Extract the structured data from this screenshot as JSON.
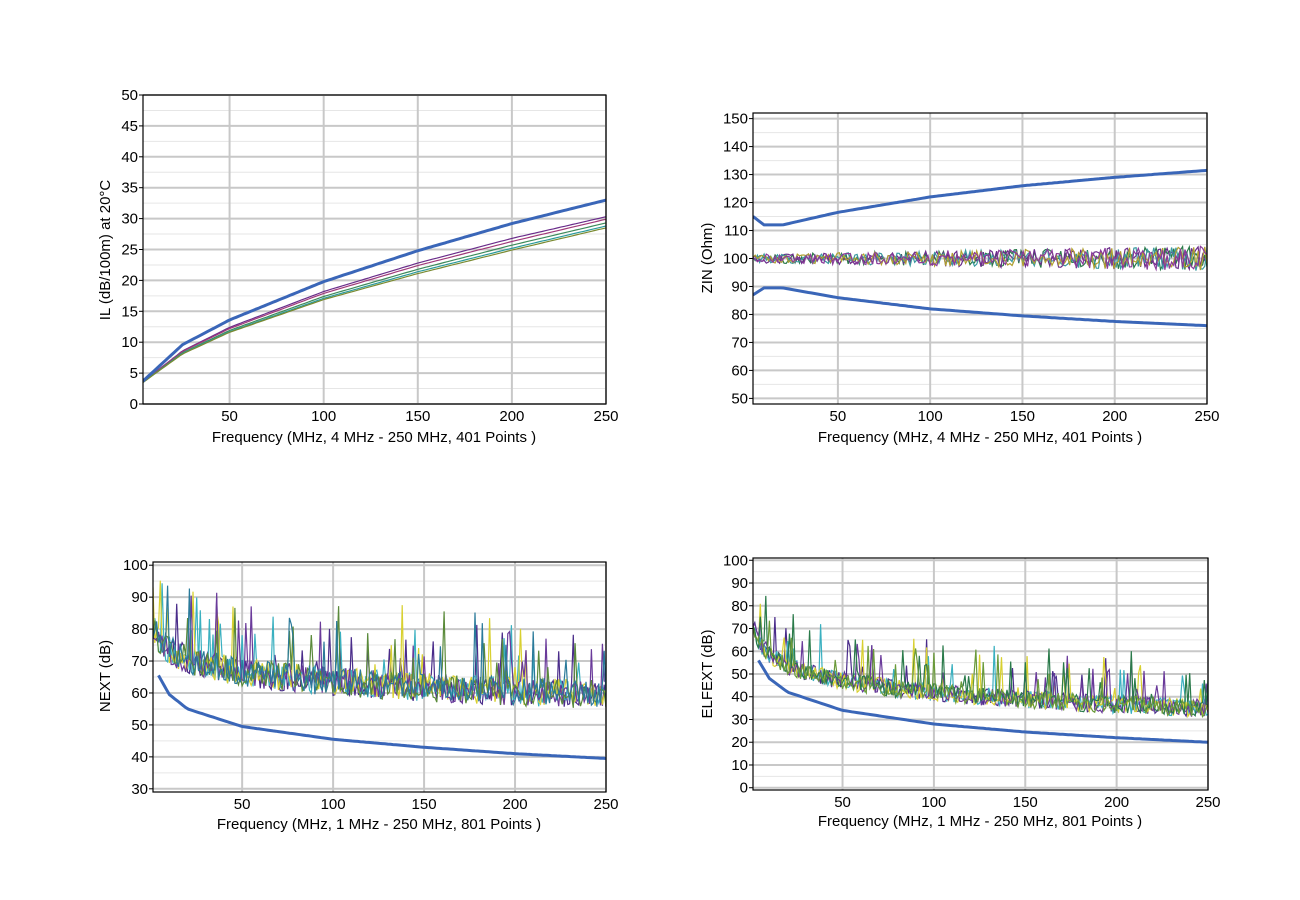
{
  "chart_data": [
    {
      "id": "il",
      "type": "line",
      "title": "",
      "xlabel": "Frequency (MHz, 4 MHz - 250 MHz, 401 Points )",
      "ylabel": "IL (dB/100m) at 20°C",
      "xlim": [
        4,
        250
      ],
      "ylim": [
        0,
        50
      ],
      "xticks": [
        50,
        100,
        150,
        200,
        250
      ],
      "yticks": [
        0,
        5,
        10,
        15,
        20,
        25,
        30,
        35,
        40,
        45,
        50
      ],
      "grid": true,
      "limit_line": {
        "x": [
          4,
          25,
          50,
          100,
          150,
          200,
          250
        ],
        "y": [
          3.7,
          9.6,
          13.6,
          19.8,
          24.8,
          29.2,
          33.0
        ]
      },
      "series": [
        {
          "color": "#6a2c8a",
          "x": [
            4,
            25,
            50,
            100,
            150,
            200,
            250
          ],
          "y": [
            3.6,
            8.6,
            12.4,
            18.2,
            22.8,
            26.8,
            30.3
          ]
        },
        {
          "color": "#a03a7a",
          "x": [
            4,
            25,
            50,
            100,
            150,
            200,
            250
          ],
          "y": [
            3.6,
            8.5,
            12.2,
            17.9,
            22.4,
            26.3,
            29.9
          ]
        },
        {
          "color": "#3d8a5a",
          "x": [
            4,
            25,
            50,
            100,
            150,
            200,
            250
          ],
          "y": [
            3.5,
            8.3,
            11.9,
            17.4,
            21.8,
            25.7,
            29.3
          ]
        },
        {
          "color": "#2a9a9a",
          "x": [
            4,
            25,
            50,
            100,
            150,
            200,
            250
          ],
          "y": [
            3.5,
            8.2,
            11.7,
            17.1,
            21.4,
            25.2,
            28.8
          ]
        },
        {
          "color": "#7a8a30",
          "x": [
            4,
            25,
            50,
            100,
            150,
            200,
            250
          ],
          "y": [
            3.5,
            8.1,
            11.6,
            16.9,
            21.1,
            24.9,
            28.5
          ]
        }
      ]
    },
    {
      "id": "zin",
      "type": "line",
      "title": "",
      "xlabel": "Frequency (MHz, 4 MHz - 250 MHz, 401 Points )",
      "ylabel": "ZIN (Ohm)",
      "xlim": [
        4,
        250
      ],
      "ylim": [
        48,
        152
      ],
      "xticks": [
        50,
        100,
        150,
        200,
        250
      ],
      "yticks": [
        50,
        60,
        70,
        80,
        90,
        100,
        110,
        120,
        130,
        140,
        150
      ],
      "grid": true,
      "limit_lines": [
        {
          "x": [
            4,
            10,
            20,
            50,
            100,
            150,
            200,
            250
          ],
          "y": [
            115,
            112,
            112,
            116.5,
            122,
            126,
            129,
            131.5
          ]
        },
        {
          "x": [
            4,
            10,
            20,
            50,
            100,
            150,
            200,
            250
          ],
          "y": [
            87,
            89.5,
            89.5,
            86,
            82,
            79.5,
            77.5,
            76
          ]
        }
      ],
      "noise": {
        "base": 100,
        "amp": 3,
        "colors": [
          "#2a7a4a",
          "#6a2c8a",
          "#3a9aa0",
          "#b0a030",
          "#8a3a9a"
        ]
      }
    },
    {
      "id": "next",
      "type": "line",
      "title": "",
      "xlabel": "Frequency (MHz, 1 MHz - 250 MHz, 801 Points )",
      "ylabel": "NEXT (dB)",
      "xlim": [
        1,
        250
      ],
      "ylim": [
        29,
        101
      ],
      "xticks": [
        50,
        100,
        150,
        200,
        250
      ],
      "yticks": [
        30,
        40,
        50,
        60,
        70,
        80,
        90,
        100
      ],
      "grid": true,
      "limit_line": {
        "x": [
          4,
          10,
          20,
          50,
          100,
          150,
          200,
          250
        ],
        "y": [
          65.5,
          59.5,
          55,
          49.5,
          45.5,
          43,
          41,
          39.5
        ]
      },
      "noise": {
        "colors": [
          "#4a2c8a",
          "#3ab0c0",
          "#d8d030",
          "#6a3a9a",
          "#5a8a3a",
          "#2a7a9a"
        ]
      }
    },
    {
      "id": "elfext",
      "type": "line",
      "title": "",
      "xlabel": "Frequency (MHz, 1 MHz - 250 MHz, 801 Points )",
      "ylabel": "ELFEXT (dB)",
      "xlim": [
        1,
        250
      ],
      "ylim": [
        -1,
        101
      ],
      "xticks": [
        50,
        100,
        150,
        200,
        250
      ],
      "yticks": [
        0,
        10,
        20,
        30,
        40,
        50,
        60,
        70,
        80,
        90,
        100
      ],
      "grid": true,
      "limit_line": {
        "x": [
          4,
          10,
          20,
          50,
          100,
          150,
          200,
          250
        ],
        "y": [
          56,
          48,
          42,
          34,
          28,
          24.5,
          22,
          20
        ]
      },
      "noise": {
        "colors": [
          "#4a2c8a",
          "#3ab0c0",
          "#d8d030",
          "#6a3a9a",
          "#2a7a4a",
          "#6a9a3a"
        ]
      }
    }
  ]
}
